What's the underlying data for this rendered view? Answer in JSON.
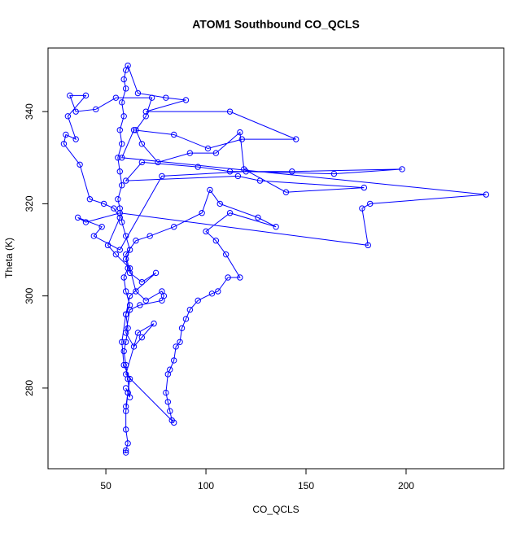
{
  "chart_data": {
    "type": "line",
    "title": "ATOM1 Southbound CO_QCLS",
    "x_label": "CO_QCLS",
    "y_label": "Theta (K)",
    "color": "#0000ff",
    "x": [
      60,
      60,
      61,
      60,
      60,
      61,
      60,
      62,
      61,
      60,
      59,
      60,
      61,
      60,
      62,
      60,
      59,
      61,
      60,
      62,
      60,
      58,
      57,
      56,
      58,
      57,
      56,
      58,
      57,
      59,
      58,
      60,
      59,
      60,
      61,
      66,
      80,
      90,
      70,
      112,
      145,
      118,
      101,
      84,
      64,
      58,
      240,
      182,
      178,
      181,
      57,
      40,
      36,
      48,
      44,
      57,
      78,
      120,
      164,
      198,
      143,
      112,
      96,
      68,
      60,
      116,
      127,
      179,
      140,
      119,
      117,
      105,
      92,
      76,
      68,
      65,
      70,
      73,
      55,
      45,
      35,
      32,
      40,
      31,
      35,
      30,
      29,
      37,
      42,
      49,
      54,
      57,
      51,
      55,
      62,
      65,
      70,
      78,
      79,
      78,
      67,
      62,
      60,
      64,
      68,
      74,
      66,
      60,
      84,
      83,
      82,
      81,
      80,
      81,
      82,
      84,
      85,
      87,
      88,
      90,
      92,
      96,
      103,
      106,
      111,
      117,
      110,
      105,
      100,
      112,
      135,
      126,
      107,
      102,
      98,
      84,
      72,
      65,
      60,
      62,
      68,
      75,
      62,
      60,
      58,
      59,
      62,
      61,
      60
    ],
    "values": [
      266,
      266.5,
      268,
      271,
      275,
      279,
      280,
      278,
      282,
      285,
      288,
      290,
      293,
      296,
      298,
      301,
      304,
      306,
      308,
      310,
      313,
      316,
      319,
      321,
      324,
      327,
      330,
      333,
      336,
      339,
      342,
      345,
      347,
      349,
      350,
      344,
      343,
      342.5,
      340,
      340,
      334,
      334,
      332,
      335,
      336,
      330,
      322,
      320,
      319,
      311,
      318,
      316,
      317,
      315,
      313,
      310,
      326,
      327,
      326.5,
      327.5,
      327,
      327,
      328,
      329,
      325,
      326,
      325,
      323.5,
      322.5,
      327.5,
      335.5,
      331,
      331,
      329,
      333,
      336,
      339,
      343,
      343,
      340.5,
      340,
      343.5,
      343.5,
      339,
      334,
      335,
      333,
      328.5,
      321,
      320,
      319,
      317,
      311,
      309,
      306,
      301,
      299,
      301,
      300,
      299,
      298,
      297,
      292,
      289,
      291,
      294,
      292,
      283,
      272.5,
      273,
      275,
      277,
      279,
      283,
      284,
      286,
      289,
      290,
      293,
      295,
      297,
      299,
      300.5,
      301,
      304,
      304,
      309,
      312,
      314,
      318,
      315,
      317,
      320,
      323,
      318,
      315,
      313,
      312,
      309,
      305,
      303,
      305,
      300,
      296,
      290,
      285,
      282,
      279,
      276
    ],
    "xlim": [
      21.1,
      248.8
    ],
    "ylim": [
      262.5,
      353.8
    ],
    "xticks": [
      50,
      100,
      150,
      200
    ],
    "yticks": [
      280,
      300,
      320,
      340
    ]
  }
}
